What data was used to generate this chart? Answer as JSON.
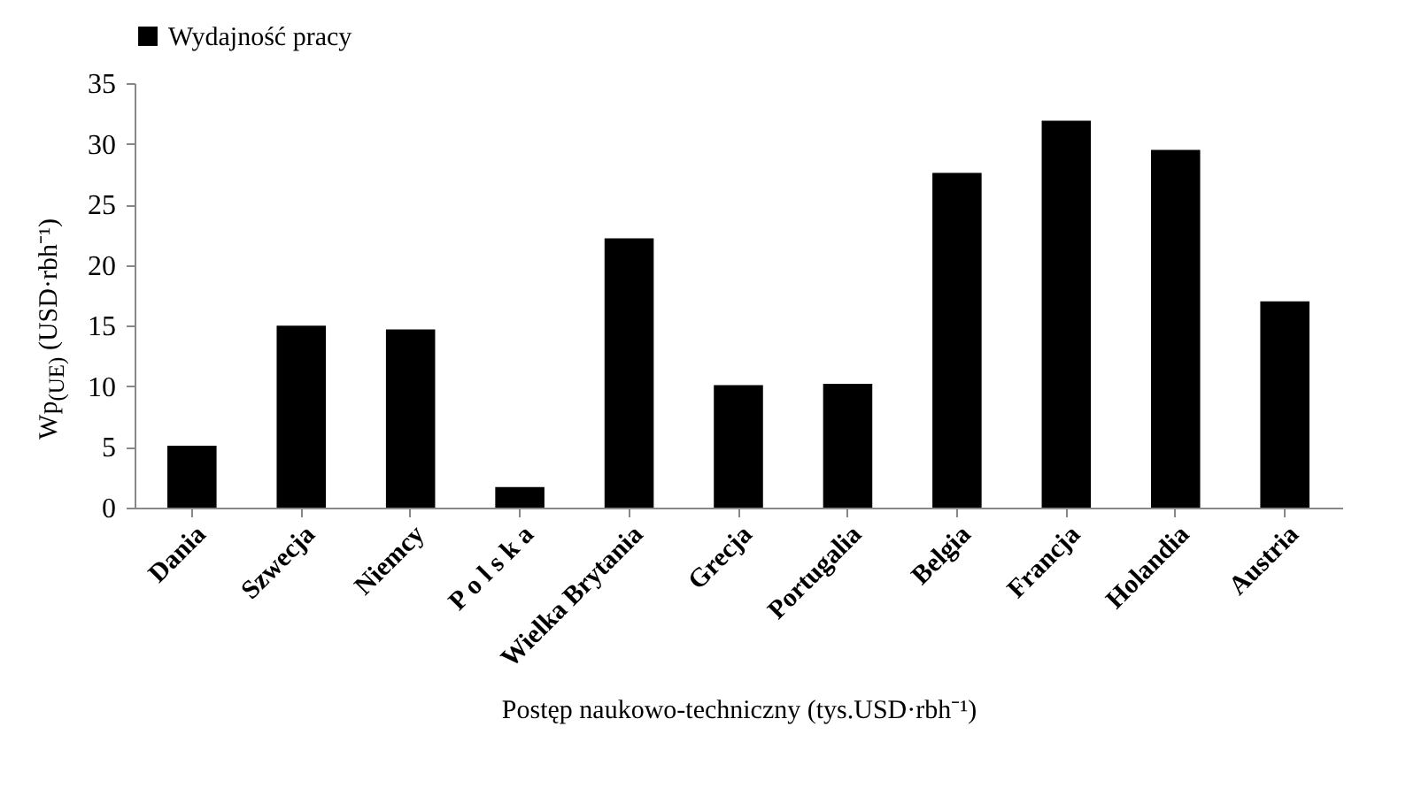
{
  "chart_data": {
    "type": "bar",
    "categories": [
      "Dania",
      "Szwecja",
      "Niemcy",
      "P o l s k a",
      "Wielka Brytania",
      "Grecja",
      "Portugalia",
      "Belgia",
      "Francja",
      "Holandia",
      "Austria"
    ],
    "series": [
      {
        "name": "Wydajność pracy",
        "color": "#000000",
        "values": [
          5.1,
          15.0,
          14.7,
          1.7,
          22.2,
          10.1,
          10.2,
          27.6,
          31.9,
          29.5,
          17.0
        ]
      }
    ],
    "xlabel": "Postęp naukowo-techniczny (tys.USD·rbh⁻¹)",
    "ylabel": "Wp$_{(UE)}$ (USD·rbh⁻¹)",
    "ylim": [
      0,
      35
    ],
    "yticks": [
      0,
      5,
      10,
      15,
      20,
      25,
      30,
      35
    ],
    "grid": false,
    "legend": "top"
  }
}
